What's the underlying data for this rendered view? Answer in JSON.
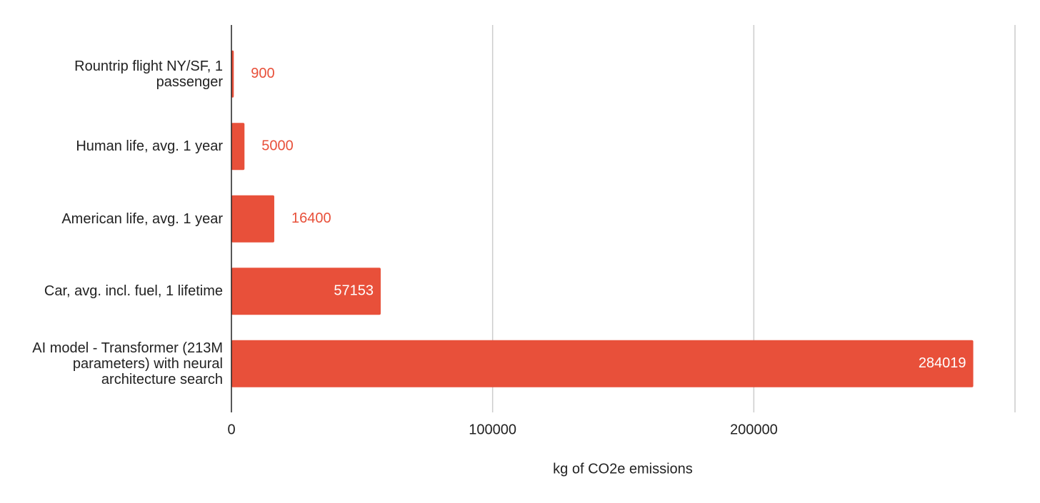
{
  "chart_data": {
    "type": "hbar",
    "x_label": "kg of CO2e emissions",
    "categories": [
      "Rountrip flight NY/SF, 1 passenger",
      "Human life, avg. 1 year",
      "American life, avg. 1 year",
      "Car, avg. incl. fuel, 1 lifetime",
      "AI model - Transformer (213M parameters) with neural architecture search"
    ],
    "values": [
      900,
      5000,
      16400,
      57153,
      284019
    ],
    "color": "#e8503a",
    "xlim": [
      0,
      300000
    ],
    "xticks": [
      0,
      100000,
      200000
    ],
    "grid": true
  }
}
